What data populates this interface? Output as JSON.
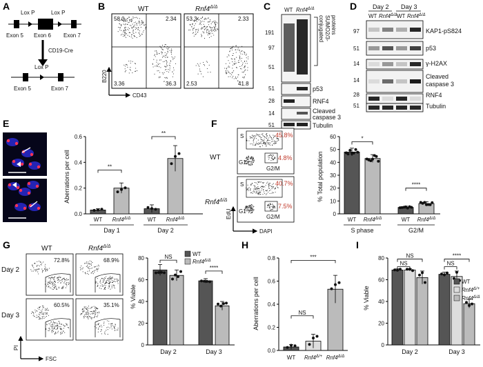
{
  "panel_labels": [
    "A",
    "B",
    "C",
    "D",
    "E",
    "F",
    "G",
    "H",
    "I"
  ],
  "panelA": {
    "lox1": "Lox P",
    "lox2": "Lox P",
    "lox3": "Lox P",
    "exon5": "Exon 5",
    "exon6": "Exon 6",
    "exon7": "Exon 7",
    "exon5b": "Exon 5",
    "exon7b": "Exon 7",
    "cre": "CD19-Cre"
  },
  "panelB": {
    "wt": "WT",
    "ko": "Rnf4",
    "sup": "Δ/Δ",
    "xlabel": "CD43",
    "ylabel": "B220",
    "wt_q": [
      "58.0",
      "2.34",
      "3.36",
      "36.3"
    ],
    "ko_q": [
      "53.3",
      "2.33",
      "2.53",
      "41.8"
    ]
  },
  "panelC": {
    "wt": "WT",
    "ko": "Rnf4",
    "sup": "Δ/Δ",
    "mw": [
      "191",
      "97",
      "51",
      "51",
      "28",
      "14",
      "51"
    ],
    "sumo_label_1": "SUMO2/3-",
    "sumo_label_2": "conjugated",
    "sumo_label_3": "proteins",
    "bands": [
      "p53",
      "RNF4",
      "Cleaved",
      "caspase 3",
      "Tubulin"
    ]
  },
  "panelD": {
    "day2": "Day 2",
    "day3": "Day 3",
    "wt": "WT",
    "ko": "Rnf4",
    "sup": "Δ/Δ",
    "mw": [
      "97",
      "51",
      "14",
      "14",
      "28",
      "51"
    ],
    "bands": [
      "KAP1-pS824",
      "p53",
      "γ-H2AX",
      "Cleaved",
      "caspase 3",
      "RNF4",
      "Tubulin"
    ]
  },
  "panelE": {
    "ylabel": "Aberrations per cell",
    "yticks": [
      "0.0",
      "0.2",
      "0.4",
      "0.6"
    ],
    "wt": "WT",
    "ko": "Rnf4",
    "sup": "Δ/Δ",
    "day1": "Day 1",
    "day2": "Day 2",
    "sig1": "**",
    "sig2": "**"
  },
  "panelF": {
    "wt": "WT",
    "ko": "Rnf4",
    "sup": "Δ/Δ",
    "s": "S",
    "g1": "G1",
    "g2m": "G2/M",
    "wt_s": "45.8%",
    "wt_g2": "4.8%",
    "ko_s": "40.7%",
    "ko_g2": "7.5%",
    "xlabel": "DAPI",
    "ylabel": "EdU",
    "bar_ylabel": "% Total population",
    "yticks": [
      "0",
      "10",
      "20",
      "30",
      "40",
      "50",
      "60"
    ],
    "grp1": "S phase",
    "grp2": "G2/M",
    "sig1": "*",
    "sig2": "****"
  },
  "panelG": {
    "wt": "WT",
    "ko": "Rnf4",
    "sup": "Δ/Δ",
    "day2": "Day 2",
    "day3": "Day 3",
    "p": [
      "72.8%",
      "68.9%",
      "60.5%",
      "35.1%"
    ],
    "xlabel": "FSC",
    "ylabel": "PI",
    "bar_ylabel": "% Viable",
    "yticks": [
      "0",
      "20",
      "40",
      "60",
      "80"
    ],
    "legend_wt": "WT",
    "legend_ko": "Rnf4",
    "legend_sup": "Δ/Δ",
    "bar_x1": "Day 2",
    "bar_x2": "Day 3",
    "sig1": "NS",
    "sig2": "****"
  },
  "panelH": {
    "ylabel": "Aberrations per cell",
    "yticks": [
      "0.0",
      "0.2",
      "0.4",
      "0.6",
      "0.8"
    ],
    "x1": "WT",
    "x2": "Rnf4",
    "x2sup": "Δ/+",
    "x3": "Rnf4",
    "x3sup": "Δ/Δ",
    "sig1": "NS",
    "sig2": "***"
  },
  "panelI": {
    "ylabel": "% Viable",
    "yticks": [
      "0",
      "20",
      "40",
      "60",
      "80"
    ],
    "x1": "Day 2",
    "x2": "Day 3",
    "legend": [
      {
        "t": "WT",
        "sup": ""
      },
      {
        "t": "Rnf4",
        "sup": "Δ/+"
      },
      {
        "t": "Rnf4",
        "sup": "Δ/Δ"
      }
    ],
    "sig1": "NS",
    "sig2": "NS",
    "sig3": "NS",
    "sig4": "****"
  },
  "chart_data": [
    {
      "id": "E",
      "type": "bar",
      "ylim": [
        0,
        0.6
      ],
      "categories": [
        "Day 1 WT",
        "Day 1 Rnf4Δ/Δ",
        "Day 2 WT",
        "Day 2 Rnf4Δ/Δ"
      ],
      "values": [
        0.03,
        0.2,
        0.04,
        0.43
      ],
      "err": [
        0.01,
        0.04,
        0.03,
        0.1
      ],
      "colors": [
        "#555555",
        "#bbbbbb",
        "#555555",
        "#bbbbbb"
      ]
    },
    {
      "id": "F",
      "type": "bar",
      "ylim": [
        0,
        60
      ],
      "categories": [
        "S WT",
        "S Rnf4Δ/Δ",
        "G2/M WT",
        "G2/M Rnf4Δ/Δ"
      ],
      "values": [
        48,
        43,
        5,
        8
      ],
      "err": [
        3,
        3,
        1,
        1.5
      ],
      "colors": [
        "#555555",
        "#bbbbbb",
        "#555555",
        "#bbbbbb"
      ]
    },
    {
      "id": "G",
      "type": "bar",
      "ylim": [
        0,
        80
      ],
      "categories": [
        "Day 2 WT",
        "Day 2 Rnf4Δ/Δ",
        "Day 3 WT",
        "Day 3 Rnf4Δ/Δ"
      ],
      "values": [
        69,
        64,
        59,
        36
      ],
      "err": [
        5,
        5,
        2,
        4
      ],
      "colors": [
        "#555555",
        "#bbbbbb",
        "#555555",
        "#bbbbbb"
      ]
    },
    {
      "id": "H",
      "type": "bar",
      "ylim": [
        0,
        0.8
      ],
      "categories": [
        "WT",
        "Rnf4Δ/+",
        "Rnf4Δ/Δ"
      ],
      "values": [
        0.03,
        0.08,
        0.53
      ],
      "err": [
        0.02,
        0.06,
        0.12
      ],
      "colors": [
        "#555555",
        "#dddddd",
        "#bbbbbb"
      ]
    },
    {
      "id": "I",
      "type": "bar",
      "ylim": [
        0,
        80
      ],
      "categories": [
        "Day 2 WT",
        "Day 2 Rnf4Δ/+",
        "Day 2 Rnf4Δ/Δ",
        "Day 3 WT",
        "Day 3 Rnf4Δ/+",
        "Day 3 Rnf4Δ/Δ"
      ],
      "values": [
        69,
        69,
        62,
        65,
        63,
        38
      ],
      "err": [
        1,
        1,
        6,
        2,
        5,
        4
      ],
      "colors": [
        "#555555",
        "#dddddd",
        "#bbbbbb",
        "#555555",
        "#dddddd",
        "#bbbbbb"
      ]
    }
  ]
}
